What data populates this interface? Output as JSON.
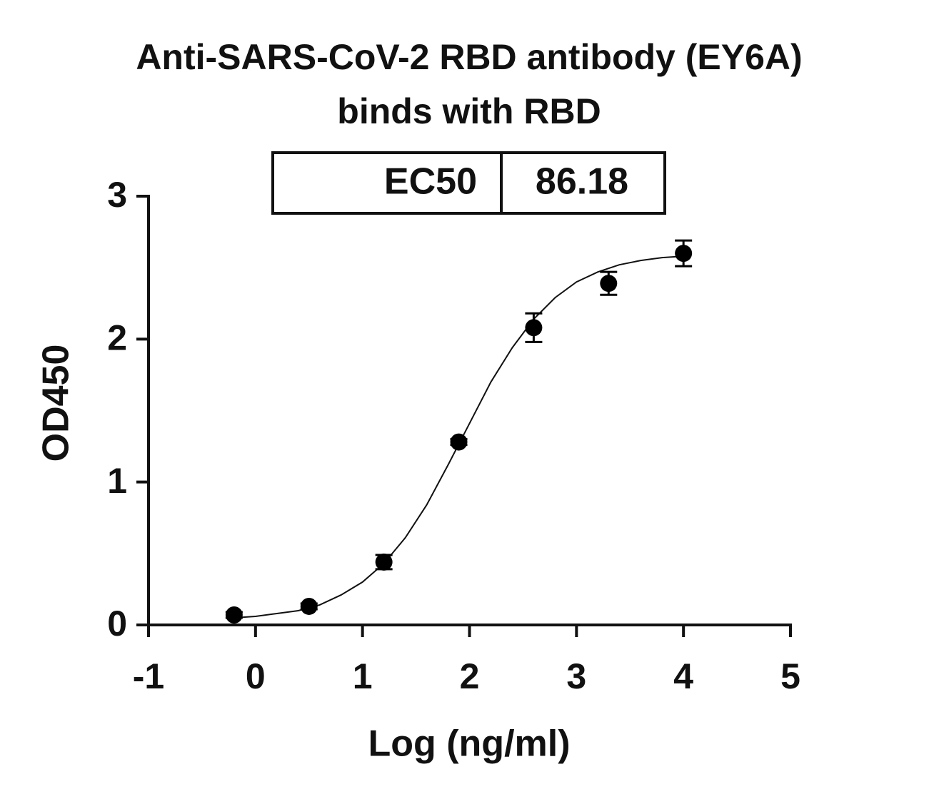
{
  "chart_data": {
    "type": "scatter",
    "title": [
      "Anti-SARS-CoV-2 RBD antibody (EY6A)",
      "binds with RBD"
    ],
    "table": [
      [
        "EC50",
        "86.18"
      ]
    ],
    "x_label": "Log (ng/ml)",
    "y_label": "OD450",
    "xlim": [
      -1,
      5
    ],
    "xticks": [
      -1,
      0,
      1,
      2,
      3,
      4,
      5
    ],
    "ylim": [
      0,
      3
    ],
    "yticks": [
      0,
      1,
      2,
      3
    ],
    "color": "#000000",
    "series": [
      {
        "x": [
          -0.2,
          0.5,
          1.2,
          1.9,
          2.6,
          3.3,
          4.0
        ],
        "values": [
          0.07,
          0.13,
          0.44,
          1.28,
          2.08,
          2.39,
          2.6
        ],
        "errors": [
          0.02,
          0.02,
          0.05,
          0.02,
          0.1,
          0.08,
          0.09
        ]
      }
    ],
    "fit": {
      "x": [
        -0.2,
        0,
        0.2,
        0.4,
        0.6,
        0.8,
        1.0,
        1.2,
        1.4,
        1.6,
        1.8,
        2.0,
        2.2,
        2.4,
        2.6,
        2.8,
        3.0,
        3.2,
        3.4,
        3.6,
        3.8,
        4.0
      ],
      "values": [
        0.05,
        0.06,
        0.08,
        0.1,
        0.14,
        0.21,
        0.3,
        0.43,
        0.61,
        0.84,
        1.12,
        1.41,
        1.7,
        1.94,
        2.14,
        2.29,
        2.4,
        2.47,
        2.52,
        2.55,
        2.57,
        2.58
      ]
    }
  }
}
